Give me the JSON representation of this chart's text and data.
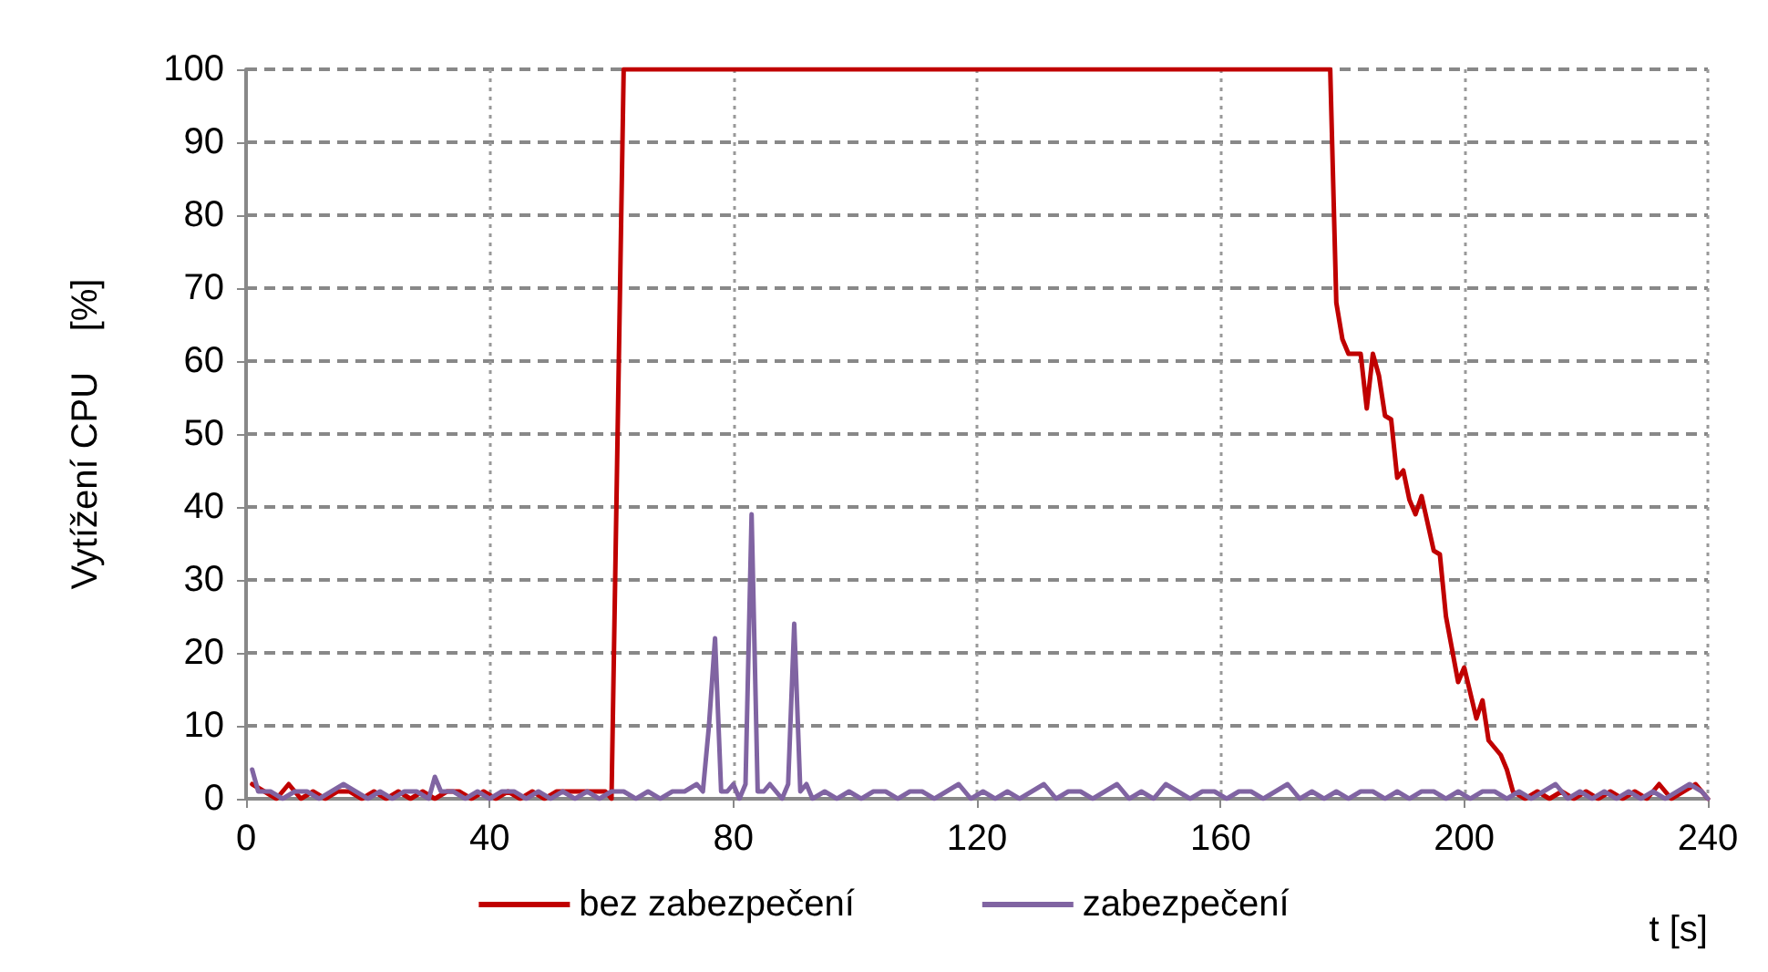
{
  "chart_data": {
    "type": "line",
    "xlabel": "t [s]",
    "ylabel": "Vytížení CPU    [%]",
    "xlim": [
      0,
      240
    ],
    "xticks": [
      0,
      40,
      80,
      120,
      160,
      200,
      240
    ],
    "ylim": [
      0,
      100
    ],
    "yticks": [
      0,
      10,
      20,
      30,
      40,
      50,
      60,
      70,
      80,
      90,
      100
    ],
    "grid": true,
    "legend": "bottom",
    "marker": "none",
    "line_style": "solid",
    "series": [
      {
        "name": "bez zabezpečení",
        "color": "#c00000",
        "x": [
          1,
          3,
          5,
          7,
          9,
          11,
          13,
          15,
          17,
          19,
          21,
          23,
          25,
          27,
          29,
          31,
          33,
          35,
          37,
          39,
          41,
          43,
          45,
          47,
          49,
          51,
          53,
          55,
          57,
          59,
          60,
          62,
          178,
          179,
          180,
          181,
          183,
          184,
          185,
          186,
          187,
          188,
          189,
          190,
          191,
          192,
          193,
          195,
          196,
          197,
          199,
          200,
          202,
          203,
          204,
          206,
          207,
          208,
          210,
          212,
          214,
          216,
          218,
          220,
          222,
          224,
          226,
          228,
          230,
          232,
          234,
          236,
          238,
          240
        ],
        "values": [
          2,
          1,
          0,
          2,
          0,
          1,
          0,
          1,
          1,
          0,
          1,
          0,
          1,
          0,
          1,
          0,
          1,
          1,
          0,
          1,
          0,
          1,
          0,
          1,
          0,
          1,
          1,
          1,
          1,
          1,
          0,
          100,
          100,
          68,
          63,
          61,
          61,
          53.5,
          61,
          58,
          52.5,
          52,
          44,
          45,
          41,
          39,
          41.5,
          34,
          33.5,
          25,
          16,
          18,
          11,
          13.5,
          8,
          6,
          4,
          1,
          0,
          1,
          0,
          1,
          0,
          1,
          0,
          1,
          0,
          1,
          0,
          2,
          0,
          1,
          2,
          0
        ]
      },
      {
        "name": "zabezpečení",
        "color": "#8064a2",
        "x": [
          1,
          2,
          4,
          6,
          8,
          10,
          12,
          14,
          16,
          18,
          20,
          22,
          24,
          26,
          28,
          30,
          31,
          32,
          34,
          36,
          38,
          40,
          42,
          44,
          46,
          48,
          50,
          52,
          54,
          56,
          58,
          60,
          62,
          64,
          66,
          68,
          70,
          72,
          74,
          75,
          76,
          77,
          78,
          79,
          80,
          81,
          82,
          83,
          84,
          85,
          86,
          87,
          88,
          89,
          90,
          91,
          92,
          93,
          95,
          97,
          99,
          101,
          103,
          105,
          107,
          109,
          111,
          113,
          115,
          117,
          119,
          121,
          123,
          125,
          127,
          129,
          131,
          133,
          135,
          137,
          139,
          141,
          143,
          145,
          147,
          149,
          151,
          153,
          155,
          157,
          159,
          161,
          163,
          165,
          167,
          169,
          171,
          173,
          175,
          177,
          179,
          181,
          183,
          185,
          187,
          189,
          191,
          193,
          195,
          197,
          199,
          201,
          203,
          205,
          207,
          209,
          211,
          213,
          215,
          217,
          219,
          221,
          223,
          225,
          227,
          229,
          231,
          233,
          235,
          237,
          239,
          240
        ],
        "values": [
          4,
          1,
          1,
          0,
          1,
          1,
          0,
          1,
          2,
          1,
          0,
          1,
          0,
          1,
          1,
          0,
          3,
          1,
          1,
          0,
          1,
          0,
          1,
          1,
          0,
          1,
          0,
          1,
          0,
          1,
          0,
          1,
          1,
          0,
          1,
          0,
          1,
          1,
          2,
          1,
          10,
          22,
          1,
          1,
          2,
          0,
          2,
          39,
          1,
          1,
          2,
          1,
          0,
          2,
          24,
          1,
          2,
          0,
          1,
          0,
          1,
          0,
          1,
          1,
          0,
          1,
          1,
          0,
          1,
          2,
          0,
          1,
          0,
          1,
          0,
          1,
          2,
          0,
          1,
          1,
          0,
          1,
          2,
          0,
          1,
          0,
          2,
          1,
          0,
          1,
          1,
          0,
          1,
          1,
          0,
          1,
          2,
          0,
          1,
          0,
          1,
          0,
          1,
          1,
          0,
          1,
          0,
          1,
          1,
          0,
          1,
          0,
          1,
          1,
          0,
          1,
          0,
          1,
          2,
          0,
          1,
          0,
          1,
          0,
          1,
          0,
          1,
          0,
          1,
          2,
          1,
          0
        ]
      }
    ]
  }
}
